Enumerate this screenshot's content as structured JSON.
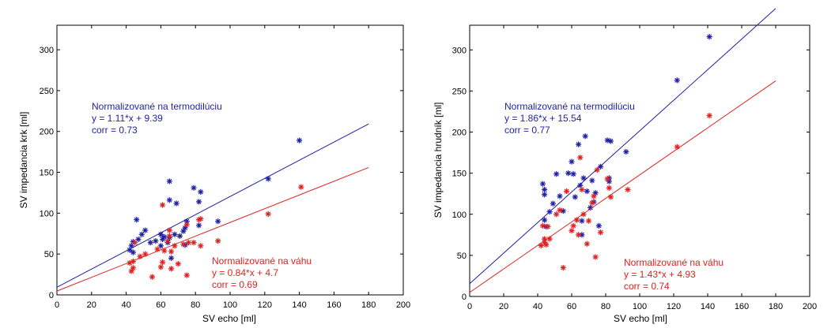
{
  "chart_data": [
    {
      "type": "scatter",
      "title": "",
      "xlabel": "SV echo [ml]",
      "ylabel": "SV impedancia krk [ml]",
      "xlim": [
        0,
        200
      ],
      "ylim": [
        0,
        330
      ],
      "xticks": [
        "0",
        "20",
        "40",
        "60",
        "80",
        "100",
        "120",
        "140",
        "160",
        "180",
        "200"
      ],
      "yticks": [
        "0",
        "50",
        "100",
        "150",
        "200",
        "250",
        "300"
      ],
      "grid": false,
      "series": [
        {
          "color": "#1f1fa6",
          "marker": "asterisk",
          "annotation": [
            "Normalizované na termodilúciu",
            "y = 1.11*x + 9.39",
            "corr = 0.73"
          ],
          "fit": {
            "slope": 1.11,
            "intercept": 9.39,
            "x": [
              0,
              180
            ]
          },
          "points": [
            [
              42,
              55
            ],
            [
              43,
              60
            ],
            [
              44,
              65
            ],
            [
              44,
              52
            ],
            [
              46,
              92
            ],
            [
              47,
              68
            ],
            [
              49,
              74
            ],
            [
              51,
              79
            ],
            [
              54,
              64
            ],
            [
              57,
              66
            ],
            [
              60,
              60
            ],
            [
              60,
              74
            ],
            [
              61,
              68
            ],
            [
              62,
              71
            ],
            [
              64,
              64
            ],
            [
              65,
              116
            ],
            [
              65,
              139
            ],
            [
              65,
              70
            ],
            [
              66,
              45
            ],
            [
              68,
              74
            ],
            [
              69,
              112
            ],
            [
              71,
              72
            ],
            [
              73,
              78
            ],
            [
              74,
              61
            ],
            [
              74,
              82
            ],
            [
              75,
              90
            ],
            [
              79,
              131
            ],
            [
              82,
              85
            ],
            [
              82,
              114
            ],
            [
              83,
              126
            ],
            [
              93,
              90
            ],
            [
              122,
              142
            ],
            [
              140,
              189
            ]
          ]
        },
        {
          "color": "#e02020",
          "marker": "asterisk",
          "annotation": [
            "Normalizované na váhu",
            "y = 0.84*x + 4.7",
            "corr = 0.69"
          ],
          "fit": {
            "slope": 0.84,
            "intercept": 4.7,
            "x": [
              0,
              180
            ]
          },
          "points": [
            [
              42,
              39
            ],
            [
              43,
              29
            ],
            [
              44,
              33
            ],
            [
              44,
              41
            ],
            [
              45,
              64
            ],
            [
              48,
              47
            ],
            [
              51,
              50
            ],
            [
              55,
              22
            ],
            [
              58,
              56
            ],
            [
              60,
              34
            ],
            [
              61,
              110
            ],
            [
              61,
              40
            ],
            [
              62,
              54
            ],
            [
              64,
              66
            ],
            [
              65,
              79
            ],
            [
              65,
              72
            ],
            [
              66,
              53
            ],
            [
              66,
              32
            ],
            [
              68,
              60
            ],
            [
              70,
              38
            ],
            [
              73,
              62
            ],
            [
              75,
              24
            ],
            [
              75,
              86
            ],
            [
              76,
              64
            ],
            [
              79,
              64
            ],
            [
              82,
              92
            ],
            [
              83,
              60
            ],
            [
              83,
              93
            ],
            [
              93,
              66
            ],
            [
              122,
              99
            ],
            [
              141,
              132
            ]
          ]
        }
      ]
    },
    {
      "type": "scatter",
      "title": "",
      "xlabel": "SV echo [ml]",
      "ylabel": "SV impedancia hrudník [ml]",
      "xlim": [
        0,
        200
      ],
      "ylim": [
        0,
        330
      ],
      "xticks": [
        "0",
        "20",
        "40",
        "60",
        "80",
        "100",
        "120",
        "140",
        "160",
        "180",
        "200"
      ],
      "yticks": [
        "0",
        "50",
        "100",
        "150",
        "200",
        "250",
        "300"
      ],
      "grid": false,
      "series": [
        {
          "color": "#1f1fa6",
          "marker": "asterisk",
          "annotation": [
            "Normalizované na termodilúciu",
            "y = 1.86*x + 15.54",
            "corr = 0.77"
          ],
          "fit": {
            "slope": 1.86,
            "intercept": 15.54,
            "x": [
              0,
              180
            ]
          },
          "points": [
            [
              43,
              137
            ],
            [
              44,
              124
            ],
            [
              44,
              130
            ],
            [
              44,
              93
            ],
            [
              45,
              85
            ],
            [
              47,
              103
            ],
            [
              49,
              113
            ],
            [
              51,
              149
            ],
            [
              53,
              122
            ],
            [
              55,
              104
            ],
            [
              58,
              150
            ],
            [
              60,
              164
            ],
            [
              61,
              149
            ],
            [
              62,
              121
            ],
            [
              64,
              185
            ],
            [
              65,
              135
            ],
            [
              66,
              92
            ],
            [
              66,
              75
            ],
            [
              67,
              144
            ],
            [
              68,
              195
            ],
            [
              69,
              128
            ],
            [
              71,
              108
            ],
            [
              72,
              141
            ],
            [
              73,
              115
            ],
            [
              74,
              126
            ],
            [
              76,
              86
            ],
            [
              77,
              158
            ],
            [
              81,
              190
            ],
            [
              82,
              144
            ],
            [
              82,
              140
            ],
            [
              83,
              189
            ],
            [
              92,
              176
            ],
            [
              122,
              263
            ],
            [
              141,
              316
            ]
          ]
        },
        {
          "color": "#e02020",
          "marker": "asterisk",
          "annotation": [
            "Normalizované na váhu",
            "y = 1.43*x + 4.93",
            "corr = 0.74"
          ],
          "fit": {
            "slope": 1.43,
            "intercept": 4.93,
            "x": [
              0,
              180
            ]
          },
          "points": [
            [
              42,
              62
            ],
            [
              43,
              86
            ],
            [
              44,
              70
            ],
            [
              44,
              66
            ],
            [
              45,
              63
            ],
            [
              46,
              85
            ],
            [
              47,
              70
            ],
            [
              51,
              100
            ],
            [
              53,
              105
            ],
            [
              55,
              35
            ],
            [
              57,
              128
            ],
            [
              60,
              80
            ],
            [
              61,
              86
            ],
            [
              63,
              93
            ],
            [
              64,
              75
            ],
            [
              65,
              169
            ],
            [
              66,
              130
            ],
            [
              67,
              100
            ],
            [
              69,
              64
            ],
            [
              70,
              92
            ],
            [
              72,
              114
            ],
            [
              73,
              122
            ],
            [
              74,
              48
            ],
            [
              75,
              154
            ],
            [
              77,
              78
            ],
            [
              81,
              143
            ],
            [
              82,
              132
            ],
            [
              83,
              121
            ],
            [
              93,
              130
            ],
            [
              122,
              182
            ],
            [
              141,
              220
            ]
          ]
        }
      ]
    }
  ]
}
